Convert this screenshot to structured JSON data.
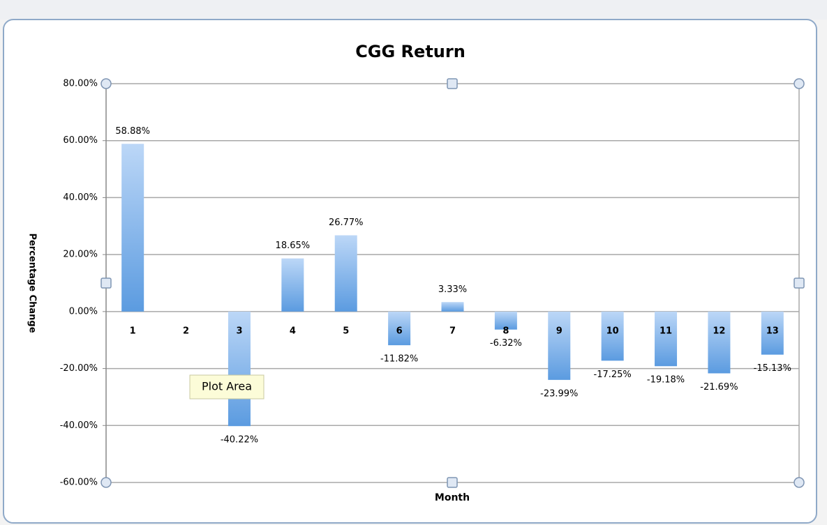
{
  "chart_data": {
    "type": "bar",
    "title": "CGG Return",
    "x_label": "Month",
    "y_label": "Percentage Change",
    "categories": [
      "1",
      "2",
      "3",
      "4",
      "5",
      "6",
      "7",
      "8",
      "9",
      "10",
      "11",
      "12",
      "13"
    ],
    "values": [
      58.88,
      null,
      -40.22,
      18.65,
      26.77,
      -11.82,
      3.33,
      -6.32,
      -23.99,
      -17.25,
      -19.18,
      -21.69,
      -15.13
    ],
    "value_labels": [
      "58.88%",
      null,
      "-40.22%",
      "18.65%",
      "26.77%",
      "-11.82%",
      "3.33%",
      "-6.32%",
      "-23.99%",
      "-17.25%",
      "-19.18%",
      "-21.69%",
      "-15.13%"
    ],
    "color": "#5b9be0",
    "ylim": [
      -60,
      80
    ],
    "yticks": [
      {
        "value": -60,
        "label": "-60.00%"
      },
      {
        "value": -40,
        "label": "-40.00%"
      },
      {
        "value": -20,
        "label": "-20.00%"
      },
      {
        "value": 0,
        "label": "0.00%"
      },
      {
        "value": 20,
        "label": "20.00%"
      },
      {
        "value": 40,
        "label": "40.00%"
      },
      {
        "value": 60,
        "label": "60.00%"
      },
      {
        "value": 80,
        "label": "80.00%"
      }
    ],
    "grid": true,
    "tooltip": "Plot Area"
  }
}
